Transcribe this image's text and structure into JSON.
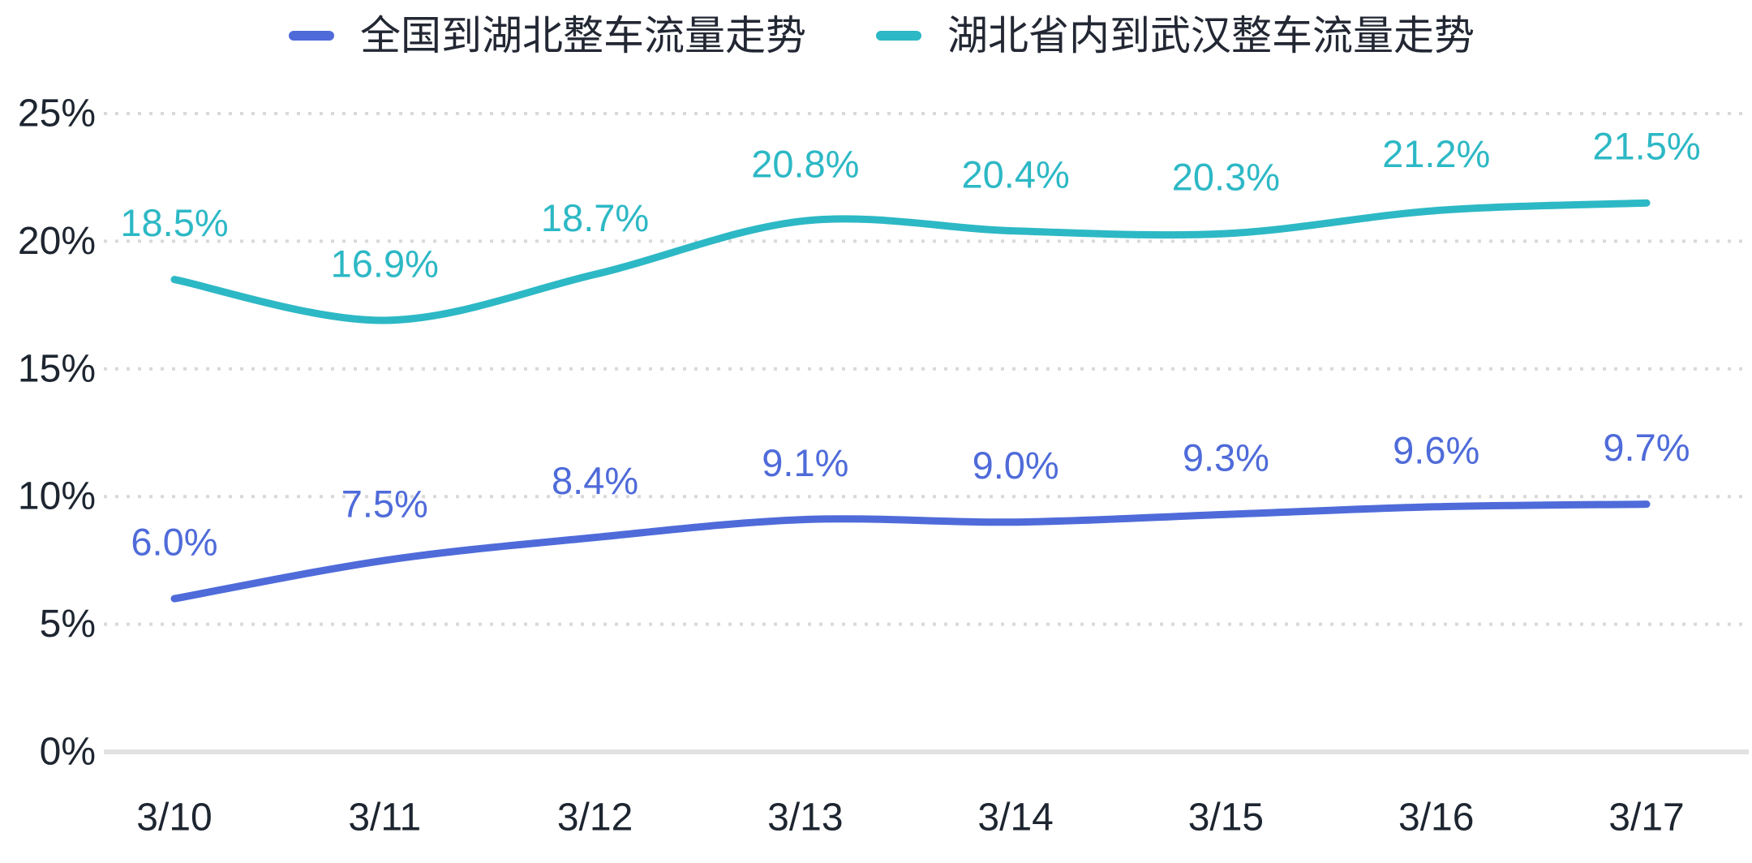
{
  "chart_data": {
    "type": "line",
    "title": "",
    "categories": [
      "3/10",
      "3/11",
      "3/12",
      "3/13",
      "3/14",
      "3/15",
      "3/16",
      "3/17"
    ],
    "series": [
      {
        "id": "national-to-hubei",
        "name": "全国到湖北整车流量走势",
        "color": "#4f6bd9",
        "values": [
          6.0,
          7.5,
          8.4,
          9.1,
          9.0,
          9.3,
          9.6,
          9.7
        ],
        "labels": [
          "6.0%",
          "7.5%",
          "8.4%",
          "9.1%",
          "9.0%",
          "9.3%",
          "9.6%",
          "9.7%"
        ]
      },
      {
        "id": "hubei-to-wuhan",
        "name": "湖北省内到武汉整车流量走势",
        "color": "#2db8c5",
        "values": [
          18.5,
          16.9,
          18.7,
          20.8,
          20.4,
          20.3,
          21.2,
          21.5
        ],
        "labels": [
          "18.5%",
          "16.9%",
          "18.7%",
          "20.8%",
          "20.4%",
          "20.3%",
          "21.2%",
          "21.5%"
        ]
      }
    ],
    "y_ticks": [
      {
        "value": 0,
        "label": "0%"
      },
      {
        "value": 5,
        "label": "5%"
      },
      {
        "value": 10,
        "label": "10%"
      },
      {
        "value": 15,
        "label": "15%"
      },
      {
        "value": 20,
        "label": "20%"
      },
      {
        "value": 25,
        "label": "25%"
      }
    ],
    "ylim": [
      0,
      25
    ],
    "xlabel": "",
    "ylabel": "",
    "grid": "horizontal-dotted",
    "legend_position": "top",
    "smooth": true,
    "colors": {
      "grid": "#d9d9d9",
      "axis_line": "#e2e2e2",
      "axis_text": "#1d2530"
    }
  }
}
